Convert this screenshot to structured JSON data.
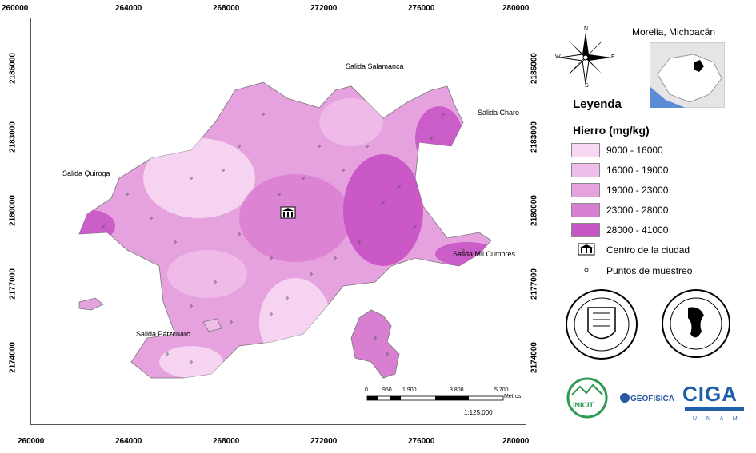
{
  "axes": {
    "top_x_ticks": [
      "260000",
      "264000",
      "268000",
      "272000",
      "276000",
      "280000"
    ],
    "bottom_x_ticks": [
      "260000",
      "264000",
      "268000",
      "272000",
      "276000",
      "280000"
    ],
    "left_y_ticks": [
      "2186000",
      "2183000",
      "2180000",
      "2177000",
      "2174000"
    ],
    "right_y_ticks": [
      "2186000",
      "2183000",
      "2180000",
      "2177000",
      "2174000"
    ]
  },
  "map": {
    "places": {
      "salamanca": "Salida Salamanca",
      "charo": "Salida Charo",
      "quiroga": "Salida Quiroga",
      "mil_cumbres": "Salida Mil Cumbres",
      "patzcuaro": "Salida Pátzcuaro"
    },
    "scale_bar": {
      "labels": [
        "0",
        "950",
        "1.900",
        "3.800",
        "5.700"
      ],
      "unit": "Metros",
      "ratio": "1:125.000"
    }
  },
  "sidebar": {
    "compass": {
      "n": "N",
      "s": "S",
      "e": "E",
      "w": "W"
    },
    "locator_title": "Morelia, Michoacán",
    "legend_title": "Leyenda",
    "variable_title": "Hierro (mg/kg)",
    "classes": [
      {
        "label": "9000 - 16000",
        "color": "#f6d8f3"
      },
      {
        "label": "16000 - 19000",
        "color": "#efbde9"
      },
      {
        "label": "19000 - 23000",
        "color": "#e6a1df"
      },
      {
        "label": "23000 - 28000",
        "color": "#d97fd1"
      },
      {
        "label": "28000 - 41000",
        "color": "#c855c5"
      }
    ],
    "city_center_label": "Centro de la ciudad",
    "sample_points_label": "Puntos de muestreo",
    "logos": {
      "inicit": "INICIT",
      "geofisica": "GEOFISICA",
      "ciga": "CIGA",
      "ciga_sub": "U N A M"
    }
  }
}
